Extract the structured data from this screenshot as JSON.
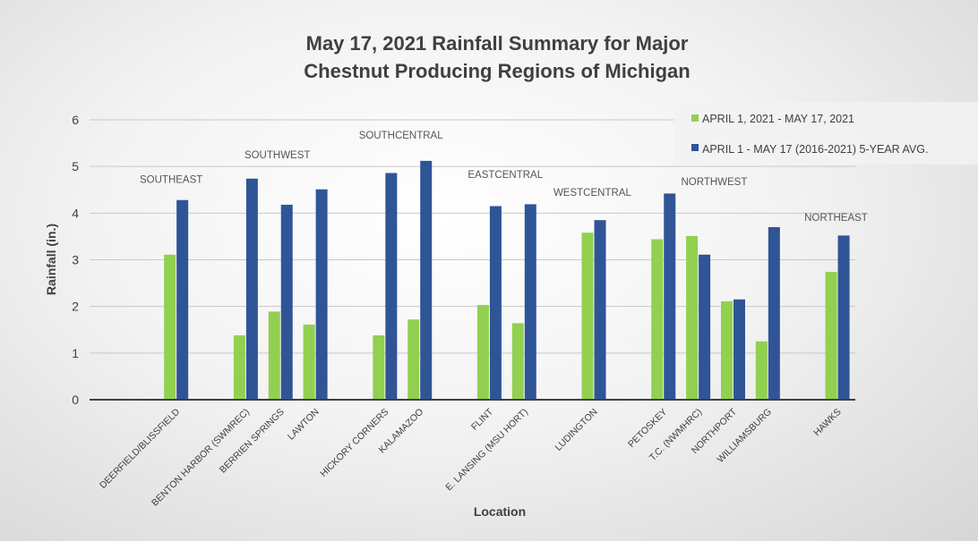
{
  "chart_data": {
    "type": "bar",
    "title": [
      "May 17, 2021 Rainfall Summary for Major",
      "Chestnut Producing Regions of Michigan"
    ],
    "xlabel": "Location",
    "ylabel": "Rainfall (in.)",
    "ylim": [
      0,
      6
    ],
    "yticks": [
      "0",
      "1",
      "2",
      "3",
      "4",
      "5",
      "6"
    ],
    "grid": true,
    "legend_position": "top-right",
    "categories": [
      "",
      "",
      "DEERFIELD/BLISSFIELD",
      "",
      "BENTON HARBOR (SWMREC)",
      "BERRIEN SPRINGS",
      "LAWTON",
      "",
      "HICKORY CORNERS",
      "KALAMAZOO",
      "",
      "FLINT",
      "E. LANSING (MSU HORT)",
      "",
      "LUDINGTON",
      "",
      "PETOSKEY",
      "T.C. (NWMHRC)",
      "NORTHPORT",
      "WILLIAMSBURG",
      "",
      "HAWKS"
    ],
    "series": [
      {
        "name": "APRIL 1, 2021 - MAY 17, 2021",
        "color": "#92d050",
        "values": [
          null,
          null,
          3.11,
          null,
          1.38,
          1.89,
          1.61,
          null,
          1.38,
          1.72,
          null,
          2.03,
          1.64,
          null,
          3.58,
          null,
          3.44,
          3.51,
          2.11,
          1.25,
          null,
          2.74
        ]
      },
      {
        "name": "APRIL 1 - MAY 17 (2016-2021) 5-YEAR AVG.",
        "color": "#2f5597",
        "values": [
          null,
          null,
          4.28,
          null,
          4.74,
          4.18,
          4.51,
          null,
          4.86,
          5.12,
          null,
          4.15,
          4.19,
          null,
          3.85,
          null,
          4.42,
          3.11,
          2.15,
          3.7,
          null,
          3.52
        ]
      }
    ],
    "annotations": [
      {
        "text": "SOUTHEAST",
        "category_index": 2,
        "y": 4.65
      },
      {
        "text": "SOUTHWEST",
        "category_index": 5.05,
        "y": 5.18
      },
      {
        "text": "SOUTHCENTRAL",
        "category_index": 8.6,
        "y": 5.6
      },
      {
        "text": "EASTCENTRAL",
        "category_index": 11.6,
        "y": 4.75
      },
      {
        "text": "WESTCENTRAL",
        "category_index": 14.1,
        "y": 4.37
      },
      {
        "text": "NORTHWEST",
        "category_index": 17.6,
        "y": 4.6
      },
      {
        "text": "NORTHEAST",
        "category_index": 21.1,
        "y": 3.83
      }
    ]
  }
}
